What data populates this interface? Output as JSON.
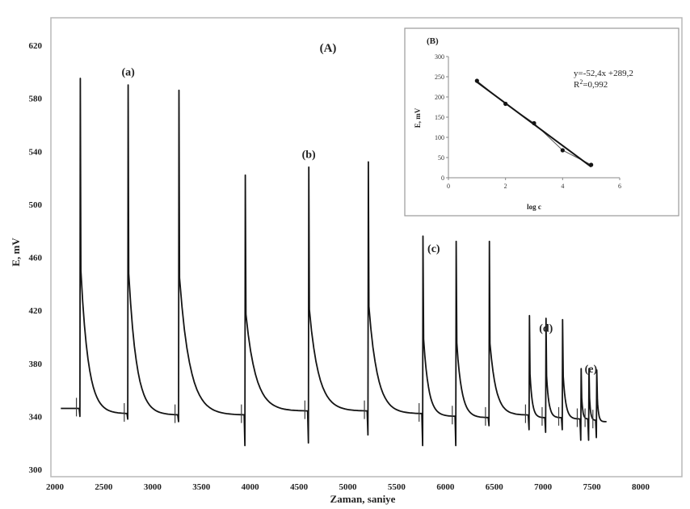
{
  "chart_data": [
    {
      "type": "line",
      "panel_label": "(A)",
      "xlabel": "Zaman, saniye",
      "ylabel": "E, mV",
      "xlim": [
        2000,
        8000
      ],
      "ylim": [
        300,
        620
      ],
      "x_ticks": [
        2000,
        2500,
        3000,
        3500,
        4000,
        4500,
        5000,
        5500,
        6000,
        6500,
        7000,
        7500,
        8000
      ],
      "y_ticks": [
        300,
        340,
        380,
        420,
        460,
        500,
        540,
        580,
        620
      ],
      "grid": false,
      "peaks": [
        {
          "t": 2260,
          "peak": 595,
          "low": 340,
          "base": 345,
          "end": 342
        },
        {
          "t": 2750,
          "peak": 590,
          "low": 338,
          "base": 345,
          "end": 341
        },
        {
          "t": 3270,
          "peak": 586,
          "low": 336,
          "base": 342,
          "end": 341
        },
        {
          "t": 3950,
          "peak": 522,
          "low": 318,
          "base": 341,
          "end": 344
        },
        {
          "t": 4600,
          "peak": 528,
          "low": 320,
          "base": 343,
          "end": 344
        },
        {
          "t": 5210,
          "peak": 532,
          "low": 326,
          "base": 344,
          "end": 342
        },
        {
          "t": 5770,
          "peak": 476,
          "low": 318,
          "base": 342,
          "end": 340
        },
        {
          "t": 6110,
          "peak": 472,
          "low": 318,
          "base": 340,
          "end": 339
        },
        {
          "t": 6450,
          "peak": 472,
          "low": 333,
          "base": 339,
          "end": 341
        },
        {
          "t": 6860,
          "peak": 416,
          "low": 330,
          "base": 340,
          "end": 339
        },
        {
          "t": 7030,
          "peak": 414,
          "low": 328,
          "base": 339,
          "end": 339
        },
        {
          "t": 7200,
          "peak": 413,
          "low": 330,
          "base": 339,
          "end": 338
        },
        {
          "t": 7390,
          "peak": 376,
          "low": 322,
          "base": 338,
          "end": 338
        },
        {
          "t": 7470,
          "peak": 376,
          "low": 322,
          "base": 338,
          "end": 337
        },
        {
          "t": 7550,
          "peak": 375,
          "low": 324,
          "base": 337,
          "end": 336
        }
      ],
      "series_end": {
        "t": 7650,
        "value": 336
      },
      "series_start": {
        "t": 2060,
        "value": 346
      },
      "annotations": [
        {
          "text": "(a)",
          "x": 2750,
          "y": 597
        },
        {
          "text": "(b)",
          "x": 4600,
          "y": 535
        },
        {
          "text": "(c)",
          "x": 5880,
          "y": 464
        },
        {
          "text": "(d)",
          "x": 7030,
          "y": 404
        },
        {
          "text": "(e)",
          "x": 7490,
          "y": 373
        }
      ]
    },
    {
      "type": "scatter",
      "panel_label": "(B)",
      "xlabel": "log c",
      "ylabel": "E, mV",
      "xlim": [
        0,
        6
      ],
      "ylim": [
        0,
        300
      ],
      "x_ticks": [
        0,
        2,
        4,
        6
      ],
      "y_ticks": [
        0,
        50,
        100,
        150,
        200,
        250,
        300
      ],
      "points": [
        {
          "x": 1,
          "y": 240
        },
        {
          "x": 2,
          "y": 183
        },
        {
          "x": 3,
          "y": 135
        },
        {
          "x": 4,
          "y": 68
        },
        {
          "x": 5,
          "y": 32
        }
      ],
      "fit": {
        "slope": -52.4,
        "intercept": 289.2
      },
      "equation": "y=-52,4x +289,2",
      "r2_label": "R",
      "r2_value": "=0,992"
    }
  ]
}
